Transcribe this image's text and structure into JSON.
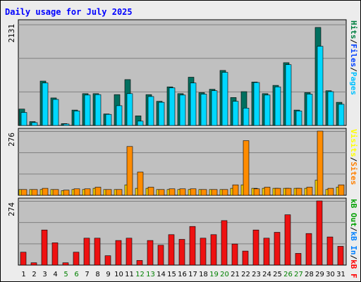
{
  "title": "Daily usage for July 2025",
  "colors": {
    "background": "#ececec",
    "plot_bg": "#c0c0c0",
    "title_color": "#0000ff",
    "hits": "#006666",
    "files": "#00c0ff",
    "pages": "#00e0ff",
    "visits": "#ffff00",
    "sites": "#ff8000",
    "kb_in": "#0080ff",
    "kb_out": "#00a000",
    "kb_f": "#ff0000"
  },
  "legend_right": {
    "top": [
      {
        "text": "Hits",
        "color": "#008040"
      },
      {
        "text": "/",
        "color": "#000000"
      },
      {
        "text": "Files",
        "color": "#0040ff"
      },
      {
        "text": "/",
        "color": "#000000"
      },
      {
        "text": "Pages",
        "color": "#00c0ff"
      }
    ],
    "middle": [
      {
        "text": "Visits",
        "color": "#ffff00"
      },
      {
        "text": "/",
        "color": "#000000"
      },
      {
        "text": "Sites",
        "color": "#ff8000"
      }
    ],
    "bottom": [
      {
        "text": "kB Out",
        "color": "#00a000"
      },
      {
        "text": "/",
        "color": "#000000"
      },
      {
        "text": "kB In",
        "color": "#0080ff"
      },
      {
        "text": "/",
        "color": "#000000"
      },
      {
        "text": "kB F",
        "color": "#ff0000"
      }
    ]
  },
  "chart_data": [
    {
      "type": "bar",
      "panel": "hits-files-pages",
      "ymax_label": "2131",
      "ylim": [
        0,
        2131
      ],
      "categories": [
        "1",
        "2",
        "3",
        "4",
        "5",
        "6",
        "7",
        "8",
        "9",
        "10",
        "11",
        "12",
        "13",
        "14",
        "15",
        "16",
        "17",
        "18",
        "19",
        "20",
        "21",
        "22",
        "23",
        "24",
        "25",
        "26",
        "27",
        "28",
        "29",
        "30",
        "31"
      ],
      "series": [
        {
          "name": "Hits",
          "values": [
            340,
            80,
            920,
            570,
            40,
            320,
            660,
            660,
            240,
            640,
            950,
            200,
            640,
            500,
            800,
            660,
            1000,
            680,
            750,
            1140,
            580,
            700,
            900,
            660,
            830,
            1300,
            320,
            680,
            2030,
            720,
            480
          ]
        },
        {
          "name": "Pages",
          "values": [
            270,
            60,
            880,
            540,
            30,
            300,
            630,
            640,
            230,
            410,
            660,
            90,
            600,
            480,
            780,
            630,
            880,
            650,
            720,
            1100,
            500,
            360,
            890,
            630,
            800,
            1260,
            300,
            650,
            1640,
            700,
            440
          ]
        }
      ]
    },
    {
      "type": "bar",
      "panel": "visits-sites",
      "ymax_label": "276",
      "ylim": [
        0,
        276
      ],
      "series": [
        {
          "name": "Visits",
          "values": [
            25,
            25,
            25,
            25,
            20,
            25,
            25,
            30,
            25,
            25,
            45,
            30,
            30,
            25,
            25,
            25,
            25,
            25,
            25,
            25,
            30,
            45,
            30,
            30,
            30,
            30,
            30,
            30,
            65,
            25,
            35
          ]
        },
        {
          "name": "Sites",
          "values": [
            25,
            25,
            30,
            25,
            22,
            28,
            28,
            35,
            25,
            25,
            210,
            100,
            35,
            25,
            28,
            28,
            28,
            25,
            25,
            25,
            45,
            235,
            28,
            35,
            30,
            30,
            30,
            35,
            276,
            30,
            45
          ]
        }
      ]
    },
    {
      "type": "bar",
      "panel": "kb",
      "ymax_label": "274",
      "ylim": [
        0,
        274
      ],
      "series": [
        {
          "name": "kB F",
          "values": [
            55,
            10,
            150,
            95,
            10,
            55,
            115,
            115,
            40,
            105,
            115,
            20,
            105,
            85,
            130,
            110,
            165,
            115,
            130,
            190,
            90,
            60,
            150,
            115,
            140,
            215,
            50,
            135,
            274,
            120,
            80
          ]
        }
      ]
    }
  ],
  "day_labels": [
    {
      "d": "1",
      "c": "#000000"
    },
    {
      "d": "2",
      "c": "#000000"
    },
    {
      "d": "3",
      "c": "#000000"
    },
    {
      "d": "4",
      "c": "#000000"
    },
    {
      "d": "5",
      "c": "#008000"
    },
    {
      "d": "6",
      "c": "#008000"
    },
    {
      "d": "7",
      "c": "#000000"
    },
    {
      "d": "8",
      "c": "#000000"
    },
    {
      "d": "9",
      "c": "#000000"
    },
    {
      "d": "10",
      "c": "#000000"
    },
    {
      "d": "11",
      "c": "#000000"
    },
    {
      "d": "12",
      "c": "#008000"
    },
    {
      "d": "13",
      "c": "#008000"
    },
    {
      "d": "14",
      "c": "#000000"
    },
    {
      "d": "15",
      "c": "#000000"
    },
    {
      "d": "16",
      "c": "#000000"
    },
    {
      "d": "17",
      "c": "#000000"
    },
    {
      "d": "18",
      "c": "#000000"
    },
    {
      "d": "19",
      "c": "#008000"
    },
    {
      "d": "20",
      "c": "#008000"
    },
    {
      "d": "21",
      "c": "#000000"
    },
    {
      "d": "22",
      "c": "#000000"
    },
    {
      "d": "23",
      "c": "#000000"
    },
    {
      "d": "24",
      "c": "#000000"
    },
    {
      "d": "25",
      "c": "#000000"
    },
    {
      "d": "26",
      "c": "#008000"
    },
    {
      "d": "27",
      "c": "#008000"
    },
    {
      "d": "28",
      "c": "#000000"
    },
    {
      "d": "29",
      "c": "#000000"
    },
    {
      "d": "30",
      "c": "#000000"
    },
    {
      "d": "31",
      "c": "#000000"
    }
  ]
}
